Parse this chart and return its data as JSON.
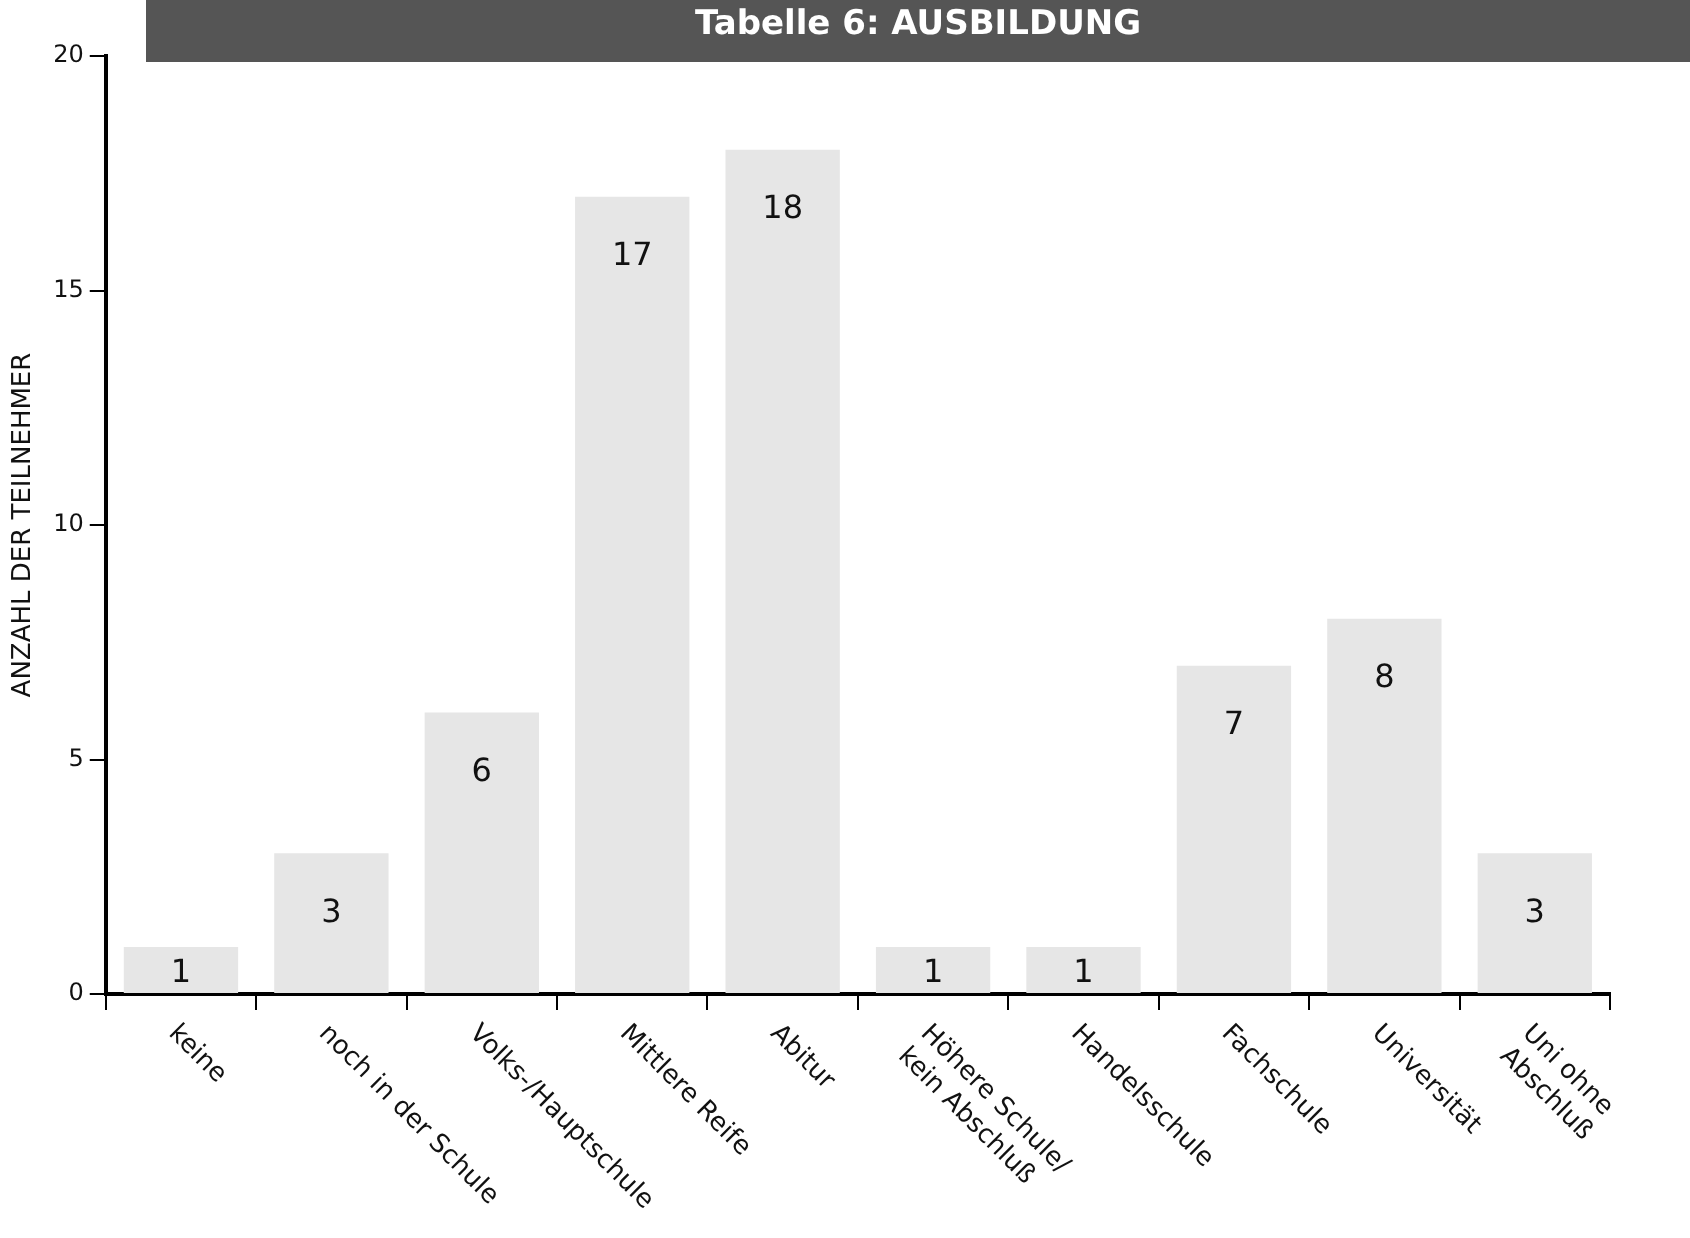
{
  "chart_data": {
    "type": "bar",
    "title": "Tabelle 6: AUSBILDUNG",
    "ylabel": "ANZAHL DER TEILNEHMER",
    "categories": [
      "keine",
      "noch in der Schule",
      "Volks-/Hauptschule",
      "Mittlere Reife",
      "Abitur",
      "Höhere Schule/\nkein Abschluß",
      "Handelsschule",
      "Fachschule",
      "Universität",
      "Uni ohne\nAbschluß"
    ],
    "values": [
      1,
      3,
      6,
      17,
      18,
      1,
      1,
      7,
      8,
      3
    ],
    "color": "#e6e6e6",
    "ylim": [
      0,
      20
    ],
    "yticks": [
      0,
      5,
      10,
      15,
      20
    ],
    "grid": false,
    "data_labels": true,
    "legend": false
  }
}
